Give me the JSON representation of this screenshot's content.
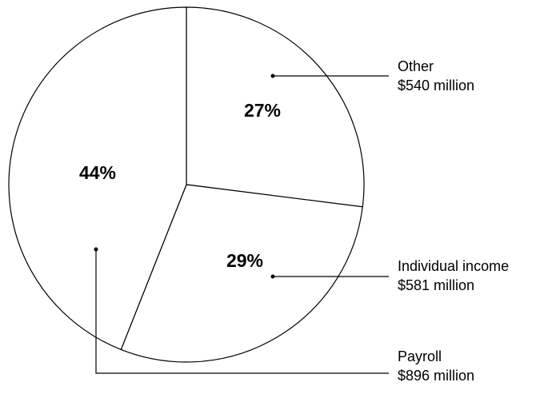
{
  "chart_data": {
    "type": "pie",
    "categories": [
      "Other",
      "Individual income",
      "Payroll"
    ],
    "values": [
      27,
      29,
      44
    ],
    "value_labels": [
      "27%",
      "29%",
      "44%"
    ],
    "amounts": [
      "$540 million",
      "$581 million",
      "$896 million"
    ],
    "color": "#ffffff"
  }
}
